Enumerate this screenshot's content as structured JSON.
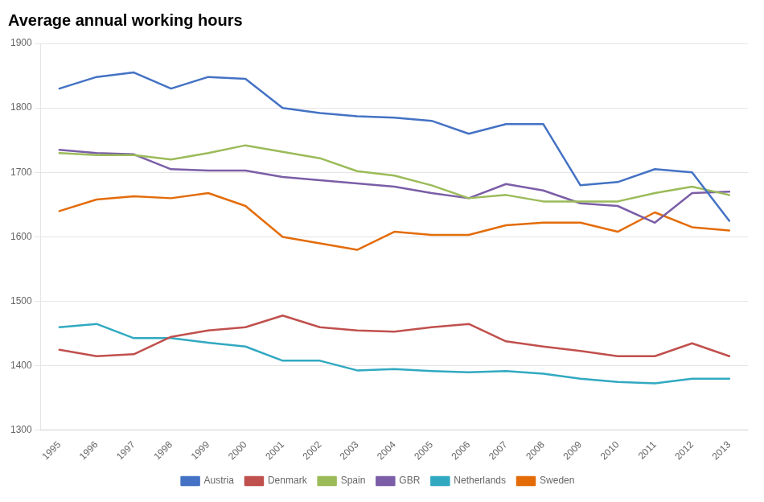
{
  "chart_data": {
    "type": "line",
    "title": "Average annual working hours",
    "x": [
      1995,
      1996,
      1997,
      1998,
      1999,
      2000,
      2001,
      2002,
      2003,
      2004,
      2005,
      2006,
      2007,
      2008,
      2009,
      2010,
      2011,
      2012,
      2013
    ],
    "xlim": [
      1994.5,
      2013.5
    ],
    "xticks": [
      1995,
      1996,
      1997,
      1998,
      1999,
      2000,
      2001,
      2002,
      2003,
      2004,
      2005,
      2006,
      2007,
      2008,
      2009,
      2010,
      2011,
      2012,
      2013
    ],
    "ylim": [
      1300,
      1900
    ],
    "yticks": [
      1300,
      1400,
      1500,
      1600,
      1700,
      1800,
      1900
    ],
    "series": [
      {
        "name": "Austria",
        "color": "#4472C4",
        "values": [
          1830,
          1848,
          1855,
          1830,
          1848,
          1845,
          1800,
          1792,
          1787,
          1785,
          1780,
          1760,
          1775,
          1775,
          1680,
          1685,
          1705,
          1700,
          1625
        ]
      },
      {
        "name": "Denmark",
        "color": "#C0504D",
        "values": [
          1425,
          1415,
          1418,
          1445,
          1455,
          1460,
          1478,
          1460,
          1455,
          1453,
          1460,
          1465,
          1438,
          1430,
          1423,
          1415,
          1415,
          1435,
          1415
        ]
      },
      {
        "name": "Spain",
        "color": "#9BBB59",
        "values": [
          1730,
          1727,
          1727,
          1720,
          1730,
          1742,
          1732,
          1722,
          1702,
          1695,
          1680,
          1660,
          1665,
          1655,
          1655,
          1655,
          1668,
          1678,
          1665
        ]
      },
      {
        "name": "GBR",
        "color": "#7B5EA7",
        "values": [
          1735,
          1730,
          1728,
          1705,
          1703,
          1703,
          1693,
          1688,
          1683,
          1678,
          1668,
          1660,
          1682,
          1672,
          1652,
          1648,
          1622,
          1668,
          1670
        ]
      },
      {
        "name": "Netherlands",
        "color": "#31A9C1",
        "values": [
          1460,
          1465,
          1443,
          1443,
          1436,
          1430,
          1408,
          1408,
          1393,
          1395,
          1392,
          1390,
          1392,
          1388,
          1380,
          1375,
          1373,
          1380,
          1380
        ]
      },
      {
        "name": "Sweden",
        "color": "#E36C09",
        "values": [
          1640,
          1658,
          1663,
          1660,
          1668,
          1648,
          1600,
          1590,
          1580,
          1608,
          1603,
          1603,
          1618,
          1622,
          1622,
          1608,
          1638,
          1615,
          1610
        ]
      }
    ],
    "grid": "y",
    "legend": "bottom"
  }
}
